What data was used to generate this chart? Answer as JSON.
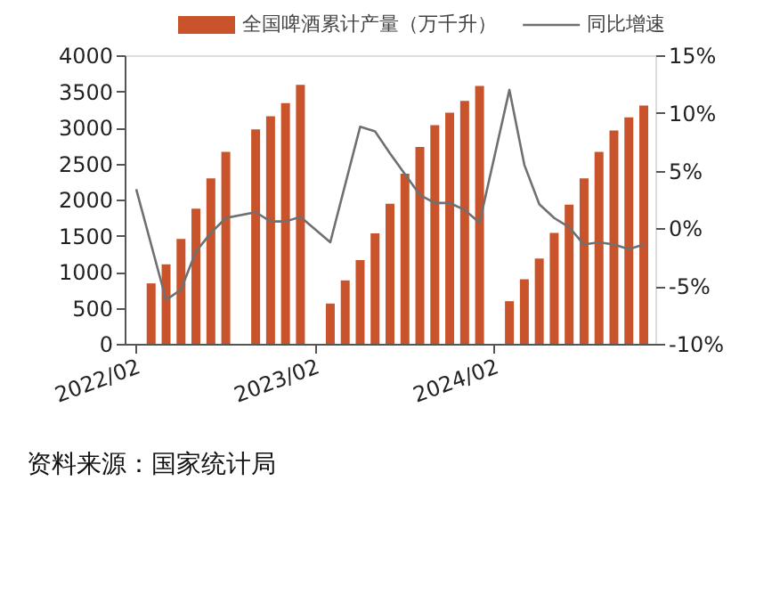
{
  "chart_data": {
    "type": "bar",
    "categories": [
      "2022/02",
      null,
      null,
      null,
      null,
      null,
      null,
      null,
      null,
      null,
      null,
      null,
      "2023/02",
      null,
      null,
      null,
      null,
      null,
      null,
      null,
      null,
      null,
      null,
      null,
      "2024/02",
      null,
      null,
      null,
      null,
      null,
      null,
      null,
      null,
      null,
      null
    ],
    "series": [
      {
        "name": "全国啤酒累计产量（万千升）",
        "color": "#c9532a",
        "values": [
          null,
          838,
          1101,
          1454,
          1873,
          2292,
          2661,
          null,
          2973,
          3154,
          3335,
          3589,
          null,
          558,
          879,
          1160,
          1530,
          1940,
          2357,
          2727,
          3031,
          3203,
          3368,
          3573,
          null,
          591,
          895,
          1183,
          1536,
          1930,
          2292,
          2661,
          2957,
          3138,
          3302
        ]
      },
      {
        "name": "同比增速",
        "type": "line",
        "axis": "y2",
        "color": "#707070",
        "values": [
          3.4,
          null,
          -6.2,
          -5.3,
          -2.0,
          -0.4,
          0.9,
          null,
          1.4,
          0.6,
          0.6,
          1.0,
          null,
          -1.2,
          null,
          8.8,
          8.4,
          6.5,
          4.7,
          2.9,
          2.2,
          2.2,
          1.6,
          0.5,
          null,
          12.0,
          5.5,
          2.1,
          0.9,
          0.1,
          -1.4,
          -1.2,
          -1.4,
          -1.8,
          -1.4
        ]
      }
    ],
    "ylim": [
      0,
      4000
    ],
    "yticks": [
      0,
      500,
      1000,
      1500,
      2000,
      2500,
      3000,
      3500,
      4000
    ],
    "y2lim": [
      -10,
      15
    ],
    "y2ticks": [
      {
        "value": -10,
        "label": "-10%"
      },
      {
        "value": -5,
        "label": "-5%"
      },
      {
        "value": 0,
        "label": "0%"
      },
      {
        "value": 5,
        "label": "5%"
      },
      {
        "value": 10,
        "label": "10%"
      },
      {
        "value": 15,
        "label": "15%"
      }
    ],
    "legend": "top",
    "grid": false,
    "annotations": [
      "资料来源：国家统计局"
    ]
  }
}
